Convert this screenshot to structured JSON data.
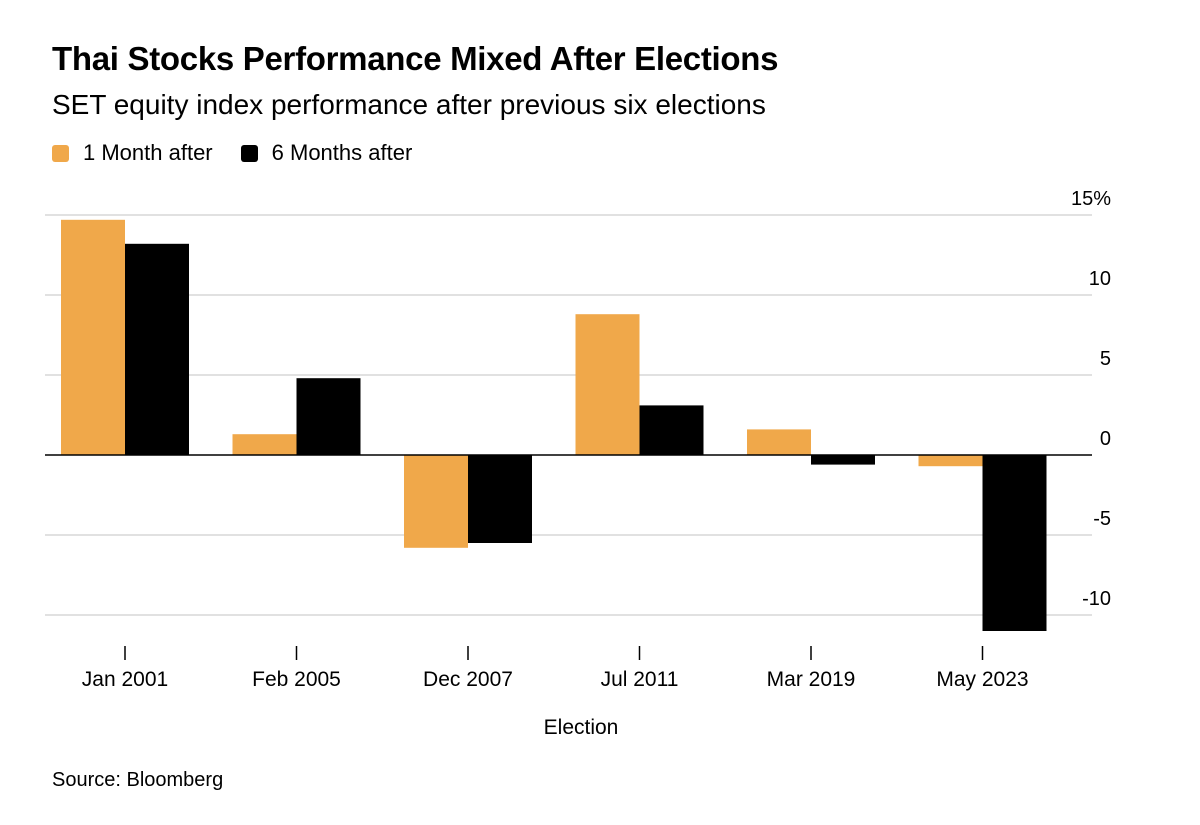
{
  "title": "Thai Stocks Performance Mixed After Elections",
  "subtitle": "SET equity index performance after previous six elections",
  "source": "Source: Bloomberg",
  "colors": {
    "series1": "#F0A84A",
    "series2": "#000000",
    "grid": "#cfcfcf",
    "zero": "#000000",
    "text": "#000000"
  },
  "chart_data": {
    "type": "bar",
    "title": "Thai Stocks Performance Mixed After Elections",
    "subtitle": "SET equity index performance after previous six elections",
    "xlabel": "Election",
    "ylabel": "",
    "ylim": [
      -11,
      15
    ],
    "yticks": [
      15,
      10,
      5,
      0,
      -5,
      -10
    ],
    "ytick_labels": [
      "15%",
      "10",
      "5",
      "0",
      "-5",
      "-10"
    ],
    "y_axis_side": "right",
    "grid": true,
    "legend_position": "top-left",
    "categories": [
      "Jan 2001",
      "Feb 2005",
      "Dec 2007",
      "Jul 2011",
      "Mar 2019",
      "May 2023"
    ],
    "series": [
      {
        "name": "1 Month after",
        "color": "#F0A84A",
        "values": [
          14.7,
          1.3,
          -5.8,
          8.8,
          1.6,
          -0.7
        ]
      },
      {
        "name": "6 Months after",
        "color": "#000000",
        "values": [
          13.2,
          4.8,
          -5.5,
          3.1,
          -0.6,
          -11.0
        ]
      }
    ]
  }
}
